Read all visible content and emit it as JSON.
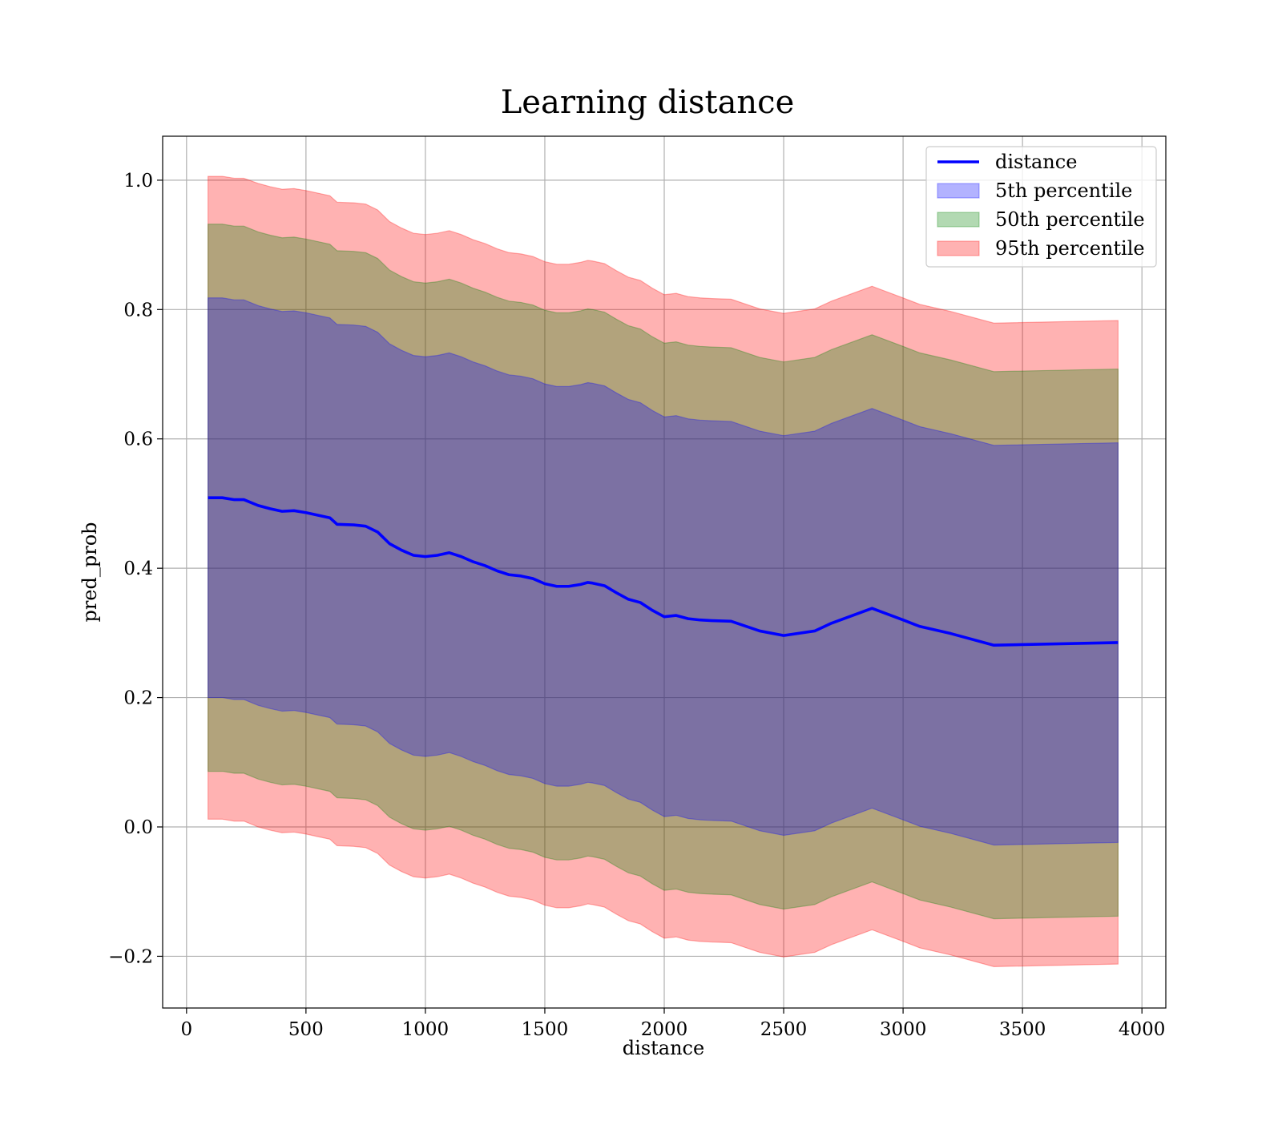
{
  "chart_data": {
    "type": "area",
    "title": "Learning distance",
    "xlabel": "distance",
    "ylabel": "pred_prob",
    "xlim": [
      -100,
      4100
    ],
    "ylim": [
      -0.28,
      1.068
    ],
    "xticks": [
      0,
      500,
      1000,
      1500,
      2000,
      2500,
      3000,
      3500,
      4000
    ],
    "xtick_labels": [
      "0",
      "500",
      "1000",
      "1500",
      "2000",
      "2500",
      "3000",
      "3500",
      "4000"
    ],
    "yticks": [
      -0.2,
      0.0,
      0.2,
      0.4,
      0.6,
      0.8,
      1.0
    ],
    "ytick_labels": [
      "−0.2",
      "0.0",
      "0.2",
      "0.4",
      "0.6",
      "0.8",
      "1.0"
    ],
    "grid": true,
    "legend_position": "top-right",
    "legend": [
      {
        "label": "distance",
        "kind": "line",
        "color": "#0000ff"
      },
      {
        "label": "5th percentile",
        "kind": "patch",
        "color": "#0000ff"
      },
      {
        "label": "50th percentile",
        "kind": "patch",
        "color": "#008000"
      },
      {
        "label": "95th percentile",
        "kind": "patch",
        "color": "#ff0000"
      }
    ],
    "x": [
      90,
      150,
      200,
      240,
      300,
      350,
      400,
      450,
      500,
      550,
      600,
      630,
      700,
      750,
      800,
      850,
      900,
      950,
      1000,
      1050,
      1100,
      1150,
      1200,
      1250,
      1300,
      1350,
      1400,
      1450,
      1500,
      1550,
      1600,
      1650,
      1680,
      1700,
      1750,
      1800,
      1850,
      1900,
      1950,
      2000,
      2050,
      2100,
      2150,
      2200,
      2280,
      2400,
      2500,
      2630,
      2700,
      2870,
      3000,
      3070,
      3200,
      3380,
      3900
    ],
    "line": {
      "name": "distance",
      "color": "#0000ff",
      "values": [
        0.509,
        0.509,
        0.506,
        0.506,
        0.497,
        0.492,
        0.488,
        0.489,
        0.486,
        0.482,
        0.478,
        0.468,
        0.467,
        0.465,
        0.456,
        0.438,
        0.428,
        0.42,
        0.418,
        0.42,
        0.424,
        0.418,
        0.41,
        0.404,
        0.396,
        0.39,
        0.388,
        0.384,
        0.376,
        0.372,
        0.372,
        0.375,
        0.378,
        0.377,
        0.373,
        0.362,
        0.352,
        0.347,
        0.335,
        0.325,
        0.327,
        0.322,
        0.32,
        0.319,
        0.318,
        0.303,
        0.296,
        0.303,
        0.315,
        0.338,
        0.32,
        0.31,
        0.299,
        0.281,
        0.285
      ]
    },
    "bands": [
      {
        "name": "95th percentile",
        "color": "#ff0000",
        "opacity": 0.3,
        "upper": [
          1.006,
          1.006,
          1.003,
          1.003,
          0.995,
          0.99,
          0.986,
          0.987,
          0.984,
          0.98,
          0.976,
          0.966,
          0.965,
          0.963,
          0.954,
          0.936,
          0.926,
          0.918,
          0.916,
          0.918,
          0.922,
          0.916,
          0.908,
          0.902,
          0.894,
          0.888,
          0.886,
          0.882,
          0.874,
          0.87,
          0.87,
          0.873,
          0.876,
          0.875,
          0.871,
          0.86,
          0.85,
          0.845,
          0.833,
          0.823,
          0.825,
          0.82,
          0.818,
          0.817,
          0.816,
          0.801,
          0.794,
          0.801,
          0.813,
          0.836,
          0.818,
          0.808,
          0.797,
          0.779,
          0.783
        ],
        "lower": [
          0.012,
          0.012,
          0.009,
          0.009,
          0.0,
          -0.005,
          -0.009,
          -0.008,
          -0.011,
          -0.015,
          -0.019,
          -0.029,
          -0.03,
          -0.032,
          -0.041,
          -0.059,
          -0.069,
          -0.077,
          -0.079,
          -0.077,
          -0.073,
          -0.079,
          -0.087,
          -0.093,
          -0.101,
          -0.107,
          -0.109,
          -0.113,
          -0.121,
          -0.125,
          -0.125,
          -0.122,
          -0.119,
          -0.12,
          -0.124,
          -0.135,
          -0.145,
          -0.15,
          -0.162,
          -0.172,
          -0.17,
          -0.175,
          -0.177,
          -0.178,
          -0.179,
          -0.194,
          -0.201,
          -0.194,
          -0.182,
          -0.159,
          -0.177,
          -0.187,
          -0.198,
          -0.216,
          -0.212
        ]
      },
      {
        "name": "50th percentile",
        "color": "#008000",
        "opacity": 0.3,
        "upper": [
          0.932,
          0.932,
          0.929,
          0.929,
          0.92,
          0.915,
          0.911,
          0.912,
          0.909,
          0.905,
          0.901,
          0.891,
          0.89,
          0.888,
          0.879,
          0.861,
          0.851,
          0.843,
          0.841,
          0.843,
          0.847,
          0.841,
          0.833,
          0.827,
          0.819,
          0.813,
          0.811,
          0.807,
          0.799,
          0.795,
          0.795,
          0.798,
          0.801,
          0.8,
          0.796,
          0.785,
          0.775,
          0.77,
          0.758,
          0.748,
          0.75,
          0.745,
          0.743,
          0.742,
          0.741,
          0.726,
          0.719,
          0.726,
          0.738,
          0.761,
          0.743,
          0.733,
          0.722,
          0.704,
          0.708
        ],
        "lower": [
          0.086,
          0.086,
          0.083,
          0.083,
          0.074,
          0.069,
          0.065,
          0.066,
          0.063,
          0.059,
          0.055,
          0.045,
          0.044,
          0.042,
          0.033,
          0.015,
          0.005,
          -0.003,
          -0.005,
          -0.003,
          0.001,
          -0.005,
          -0.013,
          -0.019,
          -0.027,
          -0.033,
          -0.035,
          -0.039,
          -0.047,
          -0.051,
          -0.051,
          -0.048,
          -0.045,
          -0.046,
          -0.05,
          -0.061,
          -0.071,
          -0.076,
          -0.088,
          -0.098,
          -0.096,
          -0.101,
          -0.103,
          -0.104,
          -0.105,
          -0.12,
          -0.127,
          -0.12,
          -0.108,
          -0.085,
          -0.103,
          -0.113,
          -0.124,
          -0.142,
          -0.138
        ]
      },
      {
        "name": "5th percentile",
        "color": "#0000ff",
        "opacity": 0.3,
        "upper": [
          0.818,
          0.818,
          0.815,
          0.815,
          0.806,
          0.801,
          0.797,
          0.798,
          0.795,
          0.791,
          0.787,
          0.777,
          0.776,
          0.774,
          0.765,
          0.747,
          0.737,
          0.729,
          0.727,
          0.729,
          0.733,
          0.727,
          0.719,
          0.713,
          0.705,
          0.699,
          0.697,
          0.693,
          0.685,
          0.681,
          0.681,
          0.684,
          0.687,
          0.686,
          0.682,
          0.671,
          0.661,
          0.656,
          0.644,
          0.634,
          0.636,
          0.631,
          0.629,
          0.628,
          0.627,
          0.612,
          0.605,
          0.612,
          0.624,
          0.647,
          0.629,
          0.619,
          0.608,
          0.59,
          0.594
        ],
        "lower": [
          0.2,
          0.2,
          0.197,
          0.197,
          0.188,
          0.183,
          0.179,
          0.18,
          0.177,
          0.173,
          0.169,
          0.159,
          0.158,
          0.156,
          0.147,
          0.129,
          0.119,
          0.111,
          0.109,
          0.111,
          0.115,
          0.109,
          0.101,
          0.095,
          0.087,
          0.081,
          0.079,
          0.075,
          0.067,
          0.063,
          0.063,
          0.066,
          0.069,
          0.068,
          0.064,
          0.053,
          0.043,
          0.038,
          0.026,
          0.016,
          0.018,
          0.013,
          0.011,
          0.01,
          0.009,
          -0.006,
          -0.013,
          -0.006,
          0.006,
          0.029,
          0.011,
          0.001,
          -0.01,
          -0.028,
          -0.024
        ]
      }
    ]
  }
}
